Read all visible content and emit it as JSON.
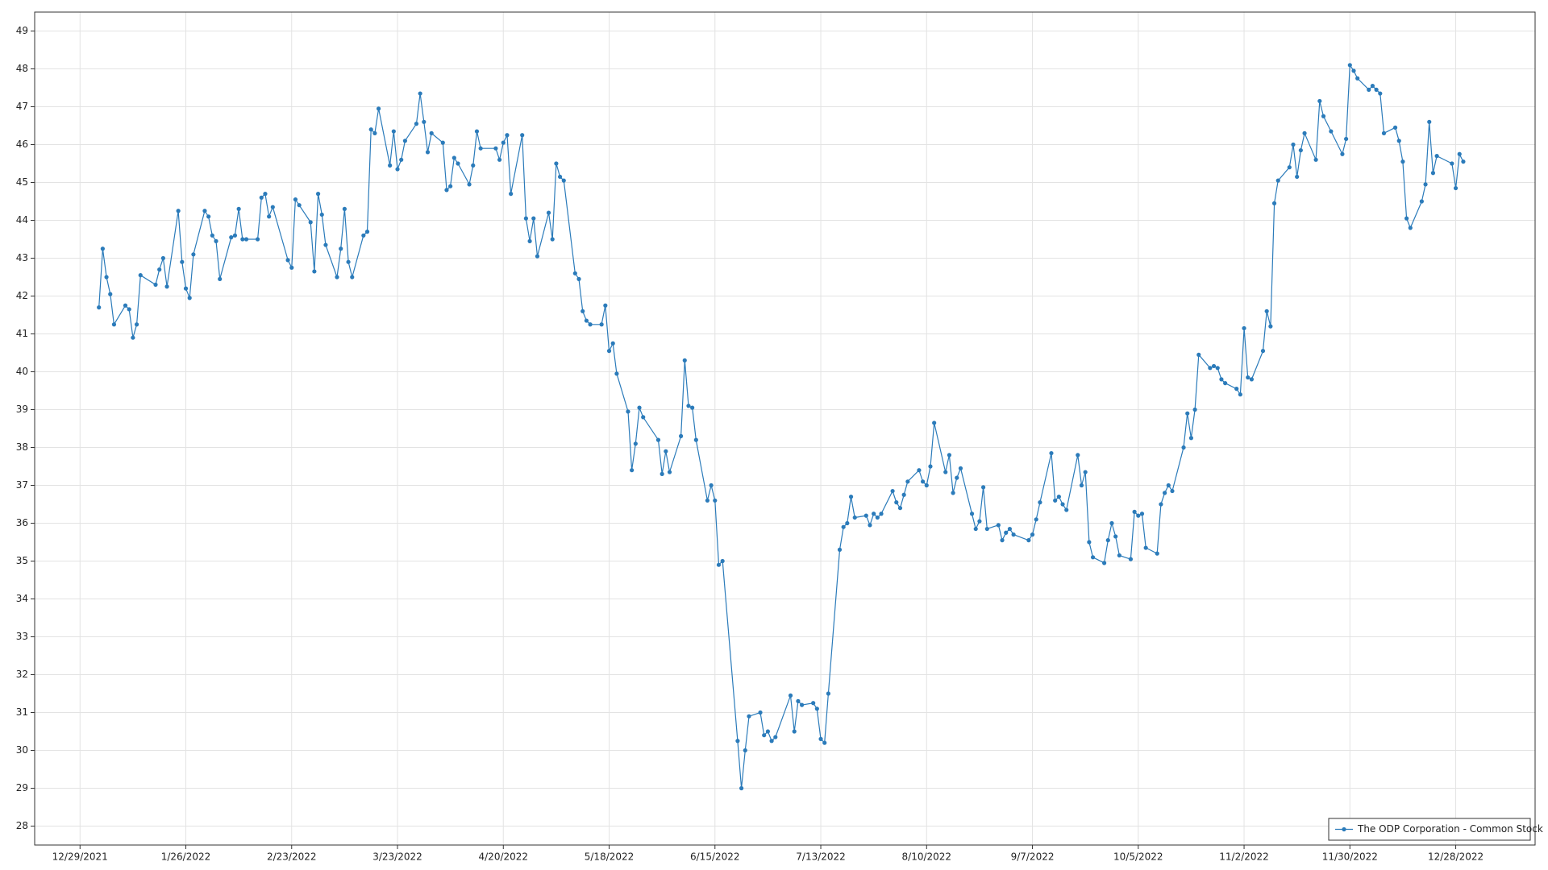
{
  "chart_data": {
    "type": "line",
    "x": [
      "1/3/2022",
      "1/4/2022",
      "1/5/2022",
      "1/6/2022",
      "1/7/2022",
      "1/10/2022",
      "1/11/2022",
      "1/12/2022",
      "1/13/2022",
      "1/14/2022",
      "1/18/2022",
      "1/19/2022",
      "1/20/2022",
      "1/21/2022",
      "1/24/2022",
      "1/25/2022",
      "1/26/2022",
      "1/27/2022",
      "1/28/2022",
      "1/31/2022",
      "2/1/2022",
      "2/2/2022",
      "2/3/2022",
      "2/4/2022",
      "2/7/2022",
      "2/8/2022",
      "2/9/2022",
      "2/10/2022",
      "2/11/2022",
      "2/14/2022",
      "2/15/2022",
      "2/16/2022",
      "2/17/2022",
      "2/18/2022",
      "2/22/2022",
      "2/23/2022",
      "2/24/2022",
      "2/25/2022",
      "2/28/2022",
      "3/1/2022",
      "3/2/2022",
      "3/3/2022",
      "3/4/2022",
      "3/7/2022",
      "3/8/2022",
      "3/9/2022",
      "3/10/2022",
      "3/11/2022",
      "3/14/2022",
      "3/15/2022",
      "3/16/2022",
      "3/17/2022",
      "3/18/2022",
      "3/21/2022",
      "3/22/2022",
      "3/23/2022",
      "3/24/2022",
      "3/25/2022",
      "3/28/2022",
      "3/29/2022",
      "3/30/2022",
      "3/31/2022",
      "4/1/2022",
      "4/4/2022",
      "4/5/2022",
      "4/6/2022",
      "4/7/2022",
      "4/8/2022",
      "4/11/2022",
      "4/12/2022",
      "4/13/2022",
      "4/14/2022",
      "4/18/2022",
      "4/19/2022",
      "4/20/2022",
      "4/21/2022",
      "4/22/2022",
      "4/25/2022",
      "4/26/2022",
      "4/27/2022",
      "4/28/2022",
      "4/29/2022",
      "5/2/2022",
      "5/3/2022",
      "5/4/2022",
      "5/5/2022",
      "5/6/2022",
      "5/9/2022",
      "5/10/2022",
      "5/11/2022",
      "5/12/2022",
      "5/13/2022",
      "5/16/2022",
      "5/17/2022",
      "5/18/2022",
      "5/19/2022",
      "5/20/2022",
      "5/23/2022",
      "5/24/2022",
      "5/25/2022",
      "5/26/2022",
      "5/27/2022",
      "5/31/2022",
      "6/1/2022",
      "6/2/2022",
      "6/3/2022",
      "6/6/2022",
      "6/7/2022",
      "6/8/2022",
      "6/9/2022",
      "6/10/2022",
      "6/13/2022",
      "6/14/2022",
      "6/15/2022",
      "6/16/2022",
      "6/17/2022",
      "6/21/2022",
      "6/22/2022",
      "6/23/2022",
      "6/24/2022",
      "6/27/2022",
      "6/28/2022",
      "6/29/2022",
      "6/30/2022",
      "7/1/2022",
      "7/5/2022",
      "7/6/2022",
      "7/7/2022",
      "7/8/2022",
      "7/11/2022",
      "7/12/2022",
      "7/13/2022",
      "7/14/2022",
      "7/15/2022",
      "7/18/2022",
      "7/19/2022",
      "7/20/2022",
      "7/21/2022",
      "7/22/2022",
      "7/25/2022",
      "7/26/2022",
      "7/27/2022",
      "7/28/2022",
      "7/29/2022",
      "8/1/2022",
      "8/2/2022",
      "8/3/2022",
      "8/4/2022",
      "8/5/2022",
      "8/8/2022",
      "8/9/2022",
      "8/10/2022",
      "8/11/2022",
      "8/12/2022",
      "8/15/2022",
      "8/16/2022",
      "8/17/2022",
      "8/18/2022",
      "8/19/2022",
      "8/22/2022",
      "8/23/2022",
      "8/24/2022",
      "8/25/2022",
      "8/26/2022",
      "8/29/2022",
      "8/30/2022",
      "8/31/2022",
      "9/1/2022",
      "9/2/2022",
      "9/6/2022",
      "9/7/2022",
      "9/8/2022",
      "9/9/2022",
      "9/12/2022",
      "9/13/2022",
      "9/14/2022",
      "9/15/2022",
      "9/16/2022",
      "9/19/2022",
      "9/20/2022",
      "9/21/2022",
      "9/22/2022",
      "9/23/2022",
      "9/26/2022",
      "9/27/2022",
      "9/28/2022",
      "9/29/2022",
      "9/30/2022",
      "10/3/2022",
      "10/4/2022",
      "10/5/2022",
      "10/6/2022",
      "10/7/2022",
      "10/10/2022",
      "10/11/2022",
      "10/12/2022",
      "10/13/2022",
      "10/14/2022",
      "10/17/2022",
      "10/18/2022",
      "10/19/2022",
      "10/20/2022",
      "10/21/2022",
      "10/24/2022",
      "10/25/2022",
      "10/26/2022",
      "10/27/2022",
      "10/28/2022",
      "10/31/2022",
      "11/1/2022",
      "11/2/2022",
      "11/3/2022",
      "11/4/2022",
      "11/7/2022",
      "11/8/2022",
      "11/9/2022",
      "11/10/2022",
      "11/11/2022",
      "11/14/2022",
      "11/15/2022",
      "11/16/2022",
      "11/17/2022",
      "11/18/2022",
      "11/21/2022",
      "11/22/2022",
      "11/23/2022",
      "11/25/2022",
      "11/28/2022",
      "11/29/2022",
      "11/30/2022",
      "12/1/2022",
      "12/2/2022",
      "12/5/2022",
      "12/6/2022",
      "12/7/2022",
      "12/8/2022",
      "12/9/2022",
      "12/12/2022",
      "12/13/2022",
      "12/14/2022",
      "12/15/2022",
      "12/16/2022",
      "12/19/2022",
      "12/20/2022",
      "12/21/2022",
      "12/22/2022",
      "12/23/2022",
      "12/27/2022",
      "12/28/2022",
      "12/29/2022",
      "12/30/2022"
    ],
    "series": [
      {
        "name": "The ODP Corporation - Common Stock",
        "color": "#2b7bba",
        "values": [
          41.7,
          43.25,
          42.5,
          42.05,
          41.25,
          41.75,
          41.65,
          40.9,
          41.25,
          42.55,
          42.3,
          42.7,
          43.0,
          42.25,
          44.25,
          42.9,
          42.2,
          41.95,
          43.1,
          44.25,
          44.1,
          43.6,
          43.45,
          42.45,
          43.55,
          43.6,
          44.3,
          43.5,
          43.5,
          43.5,
          44.6,
          44.7,
          44.1,
          44.35,
          42.95,
          42.75,
          44.55,
          44.4,
          43.95,
          42.65,
          44.7,
          44.15,
          43.35,
          42.5,
          43.25,
          44.3,
          42.9,
          42.5,
          43.6,
          43.7,
          46.4,
          46.3,
          46.95,
          45.45,
          46.35,
          45.35,
          45.6,
          46.1,
          46.55,
          47.35,
          46.6,
          45.8,
          46.3,
          46.05,
          44.8,
          44.9,
          45.65,
          45.5,
          44.95,
          45.45,
          46.35,
          45.9,
          45.9,
          45.6,
          46.05,
          46.25,
          44.7,
          46.25,
          44.05,
          43.45,
          44.05,
          43.05,
          44.2,
          43.5,
          45.5,
          45.15,
          45.05,
          42.6,
          42.45,
          41.6,
          41.35,
          41.25,
          41.25,
          41.75,
          40.55,
          40.75,
          39.95,
          38.95,
          37.4,
          38.1,
          39.05,
          38.8,
          38.2,
          37.3,
          37.9,
          37.35,
          38.3,
          40.3,
          39.1,
          39.05,
          38.2,
          36.6,
          37.0,
          36.6,
          34.9,
          35.0,
          30.25,
          29.0,
          30.0,
          30.9,
          31.0,
          30.4,
          30.5,
          30.25,
          30.35,
          31.45,
          30.5,
          31.3,
          31.2,
          31.25,
          31.1,
          30.3,
          30.2,
          31.5,
          35.3,
          35.9,
          36.0,
          36.7,
          36.15,
          36.2,
          35.95,
          36.25,
          36.15,
          36.25,
          36.85,
          36.55,
          36.4,
          36.75,
          37.1,
          37.4,
          37.1,
          37.0,
          37.5,
          38.65,
          37.35,
          37.8,
          36.8,
          37.2,
          37.45,
          36.25,
          35.85,
          36.05,
          36.95,
          35.85,
          35.95,
          35.55,
          35.75,
          35.85,
          35.7,
          35.55,
          35.7,
          36.1,
          36.55,
          37.85,
          36.6,
          36.7,
          36.5,
          36.35,
          37.8,
          37.0,
          37.35,
          35.5,
          35.1,
          34.95,
          35.55,
          36.0,
          35.65,
          35.15,
          35.05,
          36.3,
          36.2,
          36.25,
          35.35,
          35.2,
          36.5,
          36.8,
          37.0,
          36.85,
          38.0,
          38.9,
          38.25,
          39.0,
          40.45,
          40.1,
          40.15,
          40.1,
          39.8,
          39.7,
          39.55,
          39.4,
          41.15,
          39.85,
          39.8,
          40.55,
          41.6,
          41.2,
          44.45,
          45.05,
          45.4,
          46.0,
          45.15,
          45.85,
          46.3,
          45.6,
          47.15,
          46.75,
          46.35,
          45.75,
          46.15,
          48.1,
          47.95,
          47.75,
          47.45,
          47.55,
          47.45,
          47.35,
          46.3,
          46.45,
          46.1,
          45.55,
          44.05,
          43.8,
          44.5,
          44.95,
          46.6,
          45.25,
          45.7,
          45.5,
          44.85,
          45.75,
          45.55
        ]
      }
    ],
    "xlim": [
      "12/17/2021",
      "1/18/2023"
    ],
    "xticks": [
      "12/29/2021",
      "1/26/2022",
      "2/23/2022",
      "3/23/2022",
      "4/20/2022",
      "5/18/2022",
      "6/15/2022",
      "7/13/2022",
      "8/10/2022",
      "9/7/2022",
      "10/5/2022",
      "11/2/2022",
      "11/30/2022",
      "12/28/2022"
    ],
    "ylim": [
      27.5,
      49.5
    ],
    "yticks": [
      28,
      29,
      30,
      31,
      32,
      33,
      34,
      35,
      36,
      37,
      38,
      39,
      40,
      41,
      42,
      43,
      44,
      45,
      46,
      47,
      48,
      49
    ],
    "grid": true,
    "legend": "lower right"
  }
}
